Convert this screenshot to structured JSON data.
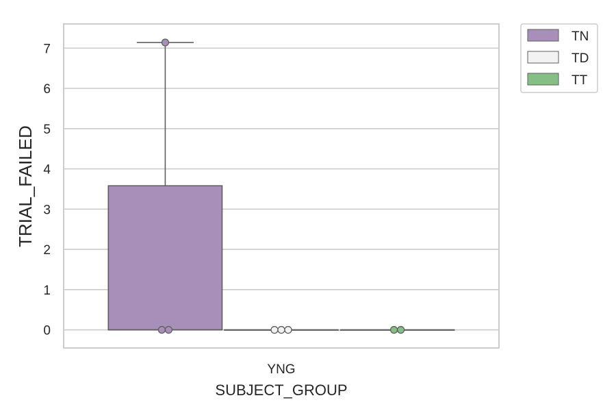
{
  "chart_data": {
    "type": "box",
    "xlabel": "SUBJECT_GROUP",
    "ylabel": "TRIAL_FAILED",
    "categories": [
      "YNG"
    ],
    "ylim": [
      -0.45,
      7.6
    ],
    "yticks": [
      0,
      1,
      2,
      3,
      4,
      5,
      6,
      7
    ],
    "grid": true,
    "legend_position": "outside-top-right",
    "series": [
      {
        "name": "TN",
        "color": "#a88fb9",
        "box": {
          "q1": 0,
          "median": 0,
          "q3": 3.58,
          "whisker_low": 0,
          "whisker_high": 7.14
        },
        "points": [
          0,
          0,
          7.14
        ]
      },
      {
        "name": "TD",
        "color": "#f2f2f2",
        "box": {
          "q1": 0,
          "median": 0,
          "q3": 0,
          "whisker_low": 0,
          "whisker_high": 0
        },
        "points": [
          0,
          0,
          0
        ]
      },
      {
        "name": "TT",
        "color": "#86bf86",
        "box": {
          "q1": 0,
          "median": 0,
          "q3": 0,
          "whisker_low": 0,
          "whisker_high": 0
        },
        "points": [
          0,
          0
        ]
      }
    ]
  }
}
